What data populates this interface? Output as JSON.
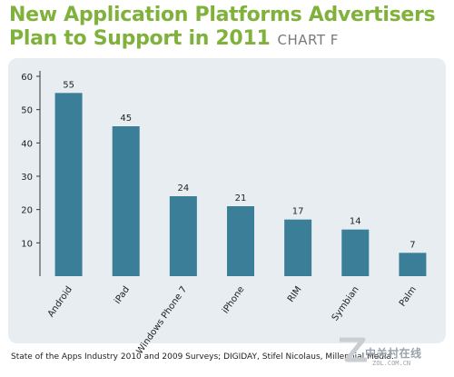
{
  "title_line1": "New Application Platforms Advertisers",
  "title_line2": "Plan to Support in 2011",
  "chart_label": "CHART F",
  "source": "State of the Apps Industry 2010 and 2009 Surveys; DIGIDAY, Stifel Nicolaus, Millennial Media.",
  "watermark": {
    "text": "中关村在线",
    "url": "ZOL.COM.CN"
  },
  "colors": {
    "title": "#7fb13b",
    "bar": "#3b7e98",
    "panel": "#e8edf2"
  },
  "chart_data": {
    "type": "bar",
    "categories": [
      "Android",
      "iPad",
      "Windows Phone 7",
      "iPhone",
      "RIM",
      "Symbian",
      "Palm"
    ],
    "values": [
      55,
      45,
      24,
      21,
      17,
      14,
      7
    ],
    "data_labels": [
      "55",
      "45",
      "24",
      "21",
      "17",
      "14",
      "7"
    ],
    "yticks": [
      10,
      20,
      30,
      40,
      50,
      60
    ],
    "ylim": [
      0,
      60
    ],
    "xlabel": "",
    "ylabel": "",
    "grid": false,
    "legend": "none"
  }
}
